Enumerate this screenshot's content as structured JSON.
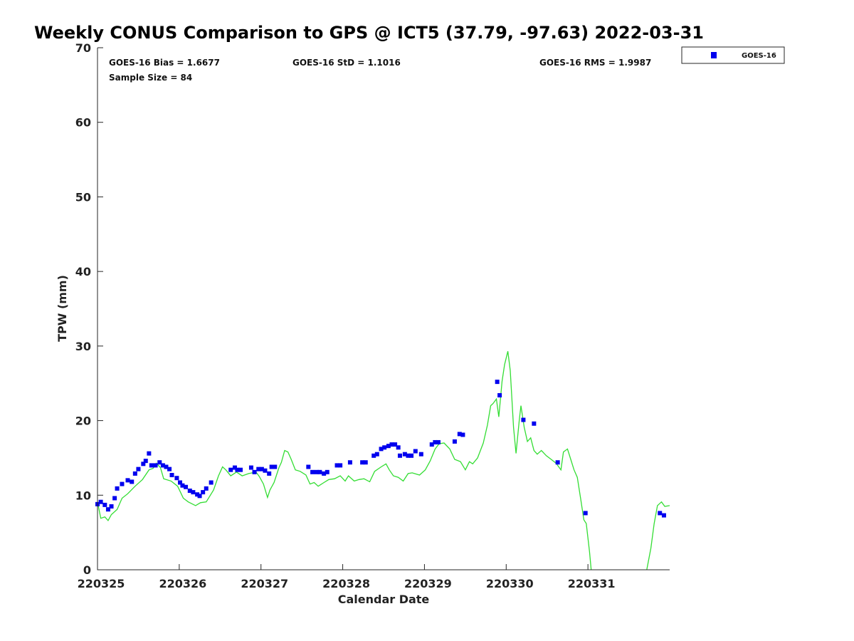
{
  "chart_data": {
    "type": "scatter+line",
    "title": "Weekly CONUS Comparison to GPS @ ICT5 (37.79, -97.63) 2022-03-31",
    "xlabel": "Calendar Date",
    "ylabel": "TPW (mm)",
    "xlim": [
      0,
      7
    ],
    "ylim": [
      0,
      70
    ],
    "x_units": "days since 220325",
    "x_ticks": [
      0,
      1,
      2,
      3,
      4,
      5,
      6
    ],
    "x_tick_labels": [
      "220325",
      "220326",
      "220327",
      "220328",
      "220329",
      "220330",
      "220331"
    ],
    "y_ticks": [
      0,
      10,
      20,
      30,
      40,
      50,
      60,
      70
    ],
    "y_tick_labels": [
      "0",
      "10",
      "20",
      "30",
      "40",
      "50",
      "60",
      "70"
    ],
    "grid": false,
    "legend": {
      "position": "top-right-outside",
      "entries": [
        "GOES-16"
      ]
    },
    "stats": {
      "bias": "GOES-16 Bias = 1.6677",
      "std": "GOES-16 StD = 1.1016",
      "rms": "GOES-16 RMS = 1.9987",
      "sample": "Sample Size = 84"
    },
    "colors": {
      "goes": "#0000ee",
      "gps": "#33dd33"
    },
    "series": [
      {
        "name": "GOES-16",
        "kind": "scatter",
        "x": [
          0.0,
          0.04,
          0.09,
          0.13,
          0.17,
          0.21,
          0.24,
          0.3,
          0.37,
          0.42,
          0.46,
          0.5,
          0.56,
          0.59,
          0.63,
          0.66,
          0.71,
          0.76,
          0.8,
          0.84,
          0.88,
          0.91,
          0.97,
          1.01,
          1.04,
          1.08,
          1.13,
          1.17,
          1.22,
          1.25,
          1.29,
          1.33,
          1.39,
          1.63,
          1.68,
          1.71,
          1.75,
          1.88,
          1.92,
          1.97,
          2.01,
          2.05,
          2.1,
          2.13,
          2.17,
          2.58,
          2.63,
          2.68,
          2.72,
          2.77,
          2.81,
          2.93,
          2.97,
          3.09,
          3.24,
          3.28,
          3.38,
          3.42,
          3.47,
          3.51,
          3.56,
          3.6,
          3.64,
          3.68,
          3.7,
          3.76,
          3.8,
          3.84,
          3.89,
          3.96,
          4.09,
          4.13,
          4.17,
          4.37,
          4.43,
          4.47,
          4.89,
          4.92,
          5.21,
          5.34,
          5.63,
          5.97,
          6.88,
          6.93
        ],
        "y": [
          8.8,
          9.1,
          8.7,
          8.1,
          8.5,
          9.6,
          10.9,
          11.5,
          12.0,
          11.8,
          12.9,
          13.5,
          14.2,
          14.6,
          15.6,
          14.0,
          14.0,
          14.4,
          14.0,
          13.8,
          13.5,
          12.7,
          12.3,
          11.7,
          11.3,
          11.1,
          10.6,
          10.4,
          10.1,
          9.9,
          10.4,
          10.9,
          11.7,
          13.4,
          13.7,
          13.4,
          13.4,
          13.7,
          13.1,
          13.5,
          13.5,
          13.3,
          12.9,
          13.8,
          13.8,
          13.8,
          13.1,
          13.1,
          13.1,
          12.9,
          13.1,
          14.0,
          14.0,
          14.4,
          14.4,
          14.4,
          15.3,
          15.5,
          16.2,
          16.4,
          16.6,
          16.8,
          16.8,
          16.4,
          15.3,
          15.5,
          15.3,
          15.3,
          15.9,
          15.5,
          16.8,
          17.1,
          17.1,
          17.2,
          18.2,
          18.1,
          25.2,
          23.4,
          20.1,
          19.6,
          14.4,
          7.6,
          7.6,
          7.3
        ]
      },
      {
        "name": "GPS",
        "kind": "line",
        "x": [
          0.0,
          0.04,
          0.09,
          0.13,
          0.17,
          0.24,
          0.3,
          0.37,
          0.46,
          0.55,
          0.63,
          0.68,
          0.72,
          0.77,
          0.81,
          0.9,
          0.98,
          1.05,
          1.11,
          1.2,
          1.26,
          1.33,
          1.42,
          1.48,
          1.53,
          1.57,
          1.63,
          1.7,
          1.77,
          1.85,
          1.94,
          1.98,
          2.03,
          2.08,
          2.11,
          2.16,
          2.22,
          2.25,
          2.29,
          2.33,
          2.37,
          2.42,
          2.48,
          2.55,
          2.6,
          2.65,
          2.7,
          2.77,
          2.83,
          2.9,
          2.97,
          3.03,
          3.07,
          3.14,
          3.2,
          3.26,
          3.33,
          3.39,
          3.47,
          3.53,
          3.57,
          3.62,
          3.68,
          3.74,
          3.8,
          3.85,
          3.94,
          4.01,
          4.07,
          4.13,
          4.18,
          4.24,
          4.31,
          4.37,
          4.44,
          4.5,
          4.55,
          4.59,
          4.65,
          4.72,
          4.77,
          4.81,
          4.84,
          4.88,
          4.91,
          4.95,
          4.98,
          5.02,
          5.05,
          5.09,
          5.12,
          5.16,
          5.18,
          5.22,
          5.26,
          5.3,
          5.34,
          5.38,
          5.43,
          5.49,
          5.55,
          5.61,
          5.67,
          5.7,
          5.75,
          5.79,
          5.83,
          5.87,
          5.91,
          5.95,
          5.98,
          6.02,
          6.04,
          null,
          6.72,
          6.77,
          6.81,
          6.85,
          6.9,
          6.94,
          7.0
        ],
        "y": [
          9.1,
          6.9,
          7.1,
          6.6,
          7.4,
          8.1,
          9.6,
          10.2,
          11.2,
          12.1,
          13.4,
          13.6,
          14.3,
          13.7,
          12.2,
          11.9,
          11.2,
          9.6,
          9.1,
          8.6,
          9.0,
          9.1,
          10.7,
          12.6,
          13.8,
          13.4,
          12.6,
          13.1,
          12.6,
          12.9,
          13.1,
          12.5,
          11.5,
          9.7,
          10.7,
          11.7,
          13.7,
          14.4,
          16.0,
          15.8,
          14.8,
          13.4,
          13.2,
          12.7,
          11.5,
          11.7,
          11.2,
          11.7,
          12.1,
          12.2,
          12.6,
          11.9,
          12.6,
          11.9,
          12.1,
          12.2,
          11.8,
          13.2,
          13.8,
          14.2,
          13.4,
          12.6,
          12.4,
          11.9,
          12.9,
          13.0,
          12.7,
          13.4,
          14.6,
          16.2,
          16.9,
          17.0,
          16.2,
          14.8,
          14.5,
          13.4,
          14.5,
          14.2,
          15.0,
          17.0,
          19.4,
          22.0,
          22.3,
          22.9,
          20.5,
          25.3,
          27.5,
          29.3,
          26.7,
          19.1,
          15.6,
          20.1,
          22.0,
          19.1,
          17.2,
          17.7,
          16.0,
          15.5,
          16.0,
          15.3,
          14.8,
          14.3,
          13.4,
          15.8,
          16.2,
          14.8,
          13.4,
          12.4,
          9.6,
          6.7,
          6.2,
          2.4,
          0,
          null,
          0,
          2.9,
          6.2,
          8.6,
          9.1,
          8.5,
          8.6
        ]
      }
    ]
  }
}
